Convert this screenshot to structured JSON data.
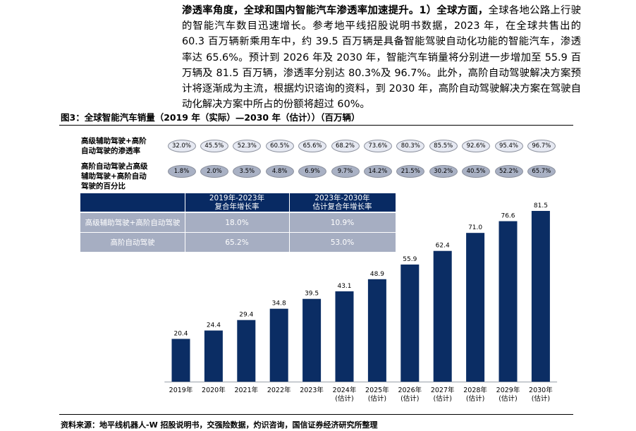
{
  "paragraph": {
    "lead": "渗透率角度，全球和国内智能汽车渗透率加速提升。1）全球方面，",
    "body": "全球各地公路上行驶的智能汽车数目迅速增长。参考地平线招股说明书数据，2023 年，在全球共售出的 60.3 百万辆新乘用车中，约 39.5 百万辆是具备智能驾驶自动化功能的智能汽车，渗透率达 65.6%。预计到 2026 年及 2030 年，智能汽车销量将分别进一步增加至 55.9 百万辆及 81.5 百万辆，渗透率分别达 80.3%及 96.7%。此外，高阶自动驾驶解决方案预计将逐渐成为主流，根据灼识谘询的资料，到 2030 年，高阶自动驾驶解决方案在驾驶自动化解决方案中所占的份额将超过 60%。"
  },
  "figure": {
    "title": "图3：全球智能汽车销量（2019 年（实际）—2030 年（估计））（百万辆）"
  },
  "rows": {
    "penetration": {
      "label_lines": [
        "高级辅助驾驶+高阶",
        "自动驾驶的渗透率"
      ],
      "values": [
        "32.0%",
        "45.5%",
        "52.3%",
        "60.5%",
        "65.6%",
        "68.2%",
        "73.6%",
        "80.3%",
        "85.5%",
        "92.6%",
        "95.4%",
        "96.7%"
      ]
    },
    "advanced_share": {
      "label_lines": [
        "高阶自动驾驶占高级",
        "辅助驾驶+高阶自动",
        "驾驶的百分比"
      ],
      "values": [
        "1.8%",
        "2.0%",
        "3.5%",
        "4.8%",
        "6.9%",
        "9.7%",
        "14.2%",
        "21.5%",
        "30.2%",
        "40.5%",
        "52.2%",
        "65.7%"
      ]
    }
  },
  "cagr_table": {
    "headers": [
      {
        "line1": "2019年-2023年",
        "line2": "复合年增长率"
      },
      {
        "line1": "2023年-2030年",
        "line2": "估计复合年增长率"
      }
    ],
    "rows": [
      {
        "label": "高级辅助驾驶+高阶自动驾驶",
        "v1": "18.0%",
        "v2": "10.9%"
      },
      {
        "label": "高阶自动驾驶",
        "v1": "65.2%",
        "v2": "53.0%"
      }
    ]
  },
  "chart_data": {
    "type": "bar",
    "categories": [
      [
        "2019年"
      ],
      [
        "2020年"
      ],
      [
        "2021年"
      ],
      [
        "2022年"
      ],
      [
        "2023年"
      ],
      [
        "2024年",
        "(估计)"
      ],
      [
        "2025年",
        "(估计)"
      ],
      [
        "2026年",
        "(估计)"
      ],
      [
        "2027年",
        "(估计)"
      ],
      [
        "2028年",
        "(估计)"
      ],
      [
        "2029年",
        "(估计)"
      ],
      [
        "2030年",
        "(估计)"
      ]
    ],
    "values": [
      20.4,
      24.4,
      29.4,
      34.8,
      39.5,
      43.1,
      48.9,
      55.9,
      62.4,
      71.0,
      76.6,
      81.5
    ],
    "value_labels": [
      "20.4",
      "24.4",
      "29.4",
      "34.8",
      "39.5",
      "43.1",
      "48.9",
      "55.9",
      "62.4",
      "71.0",
      "76.6",
      "81.5"
    ],
    "bar_color": "#0b2d64",
    "ylim": [
      0,
      81.5
    ],
    "grid": false,
    "legend": "none"
  },
  "source": "资料来源：地平线机器人-W 招股说明书，交强险数据，灼识咨询，国信证券经济研究所整理"
}
